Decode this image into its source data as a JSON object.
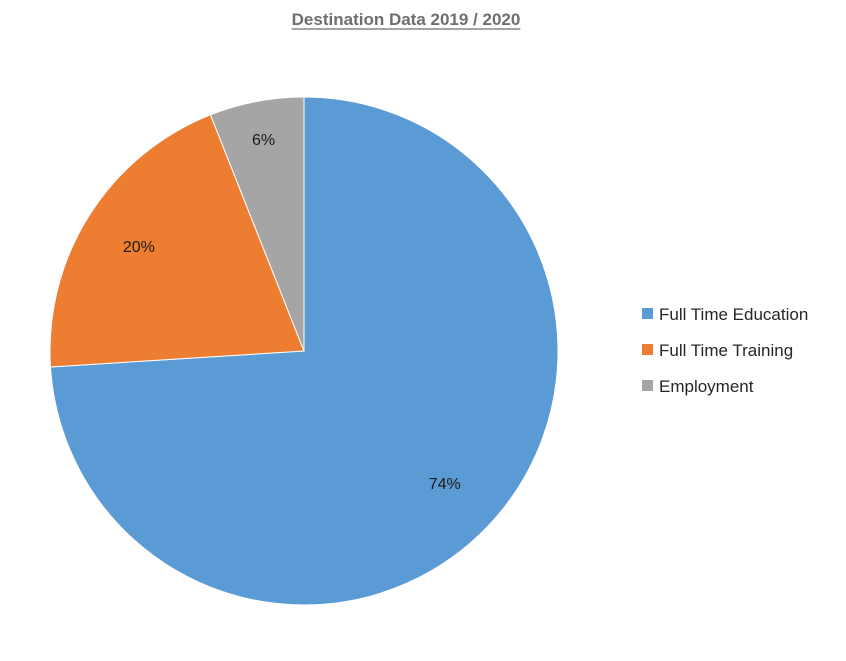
{
  "chart_data": {
    "type": "pie",
    "title": "Destination Data 2019 / 2020",
    "categories": [
      "Full Time Education",
      "Full Time Training",
      "Employment"
    ],
    "values": [
      74,
      20,
      6
    ],
    "data_labels": [
      "74%",
      "20%",
      "6%"
    ],
    "colors": [
      "#5b9bd5",
      "#ed7d31",
      "#a5a5a5"
    ],
    "start_angle_deg": 0,
    "direction": "clockwise",
    "legend_position": "right"
  }
}
